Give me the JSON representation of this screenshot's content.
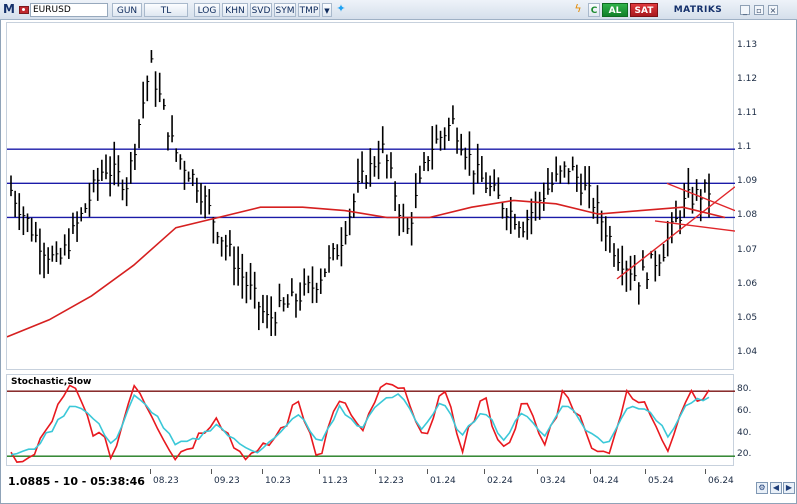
{
  "toolbar": {
    "logo": "M",
    "symbol": "EURUSD",
    "buttons": [
      "GUN",
      "TL",
      "LOG",
      "KHN",
      "SVD",
      "SYM",
      "TMP"
    ],
    "al": "AL",
    "sat": "SAT",
    "brand": "MATRIKS",
    "colors": {
      "al": "#1e9b37",
      "sat": "#c8262b",
      "brand": "#14306b"
    }
  },
  "price_panel": {
    "y_ticks": [
      "1.13",
      "1.12",
      "1.11",
      "1.1",
      "1.09",
      "1.08",
      "1.07",
      "1.06",
      "1.05",
      "1.04"
    ],
    "colors": {
      "bars": "#000000",
      "moving_average": "#d62020",
      "hlines": "#1a1aa8",
      "triangle": "#e0262a"
    }
  },
  "stoch_panel": {
    "title": "Stochastic,Slow",
    "y_ticks": [
      "80.",
      "60.",
      "40.",
      "20."
    ],
    "colors": {
      "fast": "#e8191f",
      "slow": "#3bc8d8",
      "upper": "#7a1010",
      "lower": "#1c7a1c"
    }
  },
  "x_labels": [
    "08.23",
    "09.23",
    "10.23",
    "11.23",
    "12.23",
    "01.24",
    "02.24",
    "03.24",
    "04.24",
    "05.24",
    "06.24"
  ],
  "status": "1.0885 - 10 - 05:38:46",
  "chart_data": {
    "type": "line",
    "price_ylim": [
      1.035,
      1.137
    ],
    "horizontal_levels": [
      1.1,
      1.09,
      1.08
    ],
    "moving_average": [
      1.045,
      1.05,
      1.057,
      1.066,
      1.077,
      1.08,
      1.083,
      1.083,
      1.082,
      1.08,
      1.08,
      1.083,
      1.085,
      1.084,
      1.081,
      1.082,
      1.083,
      1.08
    ],
    "price_close": [
      1.088,
      1.075,
      1.066,
      1.08,
      1.095,
      1.09,
      1.125,
      1.1,
      1.09,
      1.075,
      1.062,
      1.05,
      1.055,
      1.06,
      1.07,
      1.09,
      1.1,
      1.075,
      1.1,
      1.108,
      1.093,
      1.085,
      1.078,
      1.088,
      1.095,
      1.085,
      1.07,
      1.062,
      1.07,
      1.085,
      1.088
    ],
    "stoch_ylim": [
      10,
      95
    ],
    "stoch_levels": [
      80,
      20
    ],
    "stoch_fast": [
      20,
      15,
      55,
      85,
      45,
      20,
      90,
      55,
      20,
      35,
      60,
      25,
      20,
      40,
      70,
      20,
      75,
      40,
      80,
      85,
      35,
      80,
      30,
      75,
      25,
      70,
      30,
      85,
      40,
      20,
      75,
      65,
      30,
      80,
      75
    ],
    "stoch_slow": [
      22,
      25,
      45,
      70,
      55,
      30,
      75,
      60,
      30,
      35,
      50,
      32,
      25,
      38,
      60,
      30,
      65,
      45,
      70,
      78,
      45,
      70,
      38,
      65,
      35,
      62,
      38,
      72,
      45,
      30,
      65,
      66,
      38,
      70,
      72
    ]
  }
}
